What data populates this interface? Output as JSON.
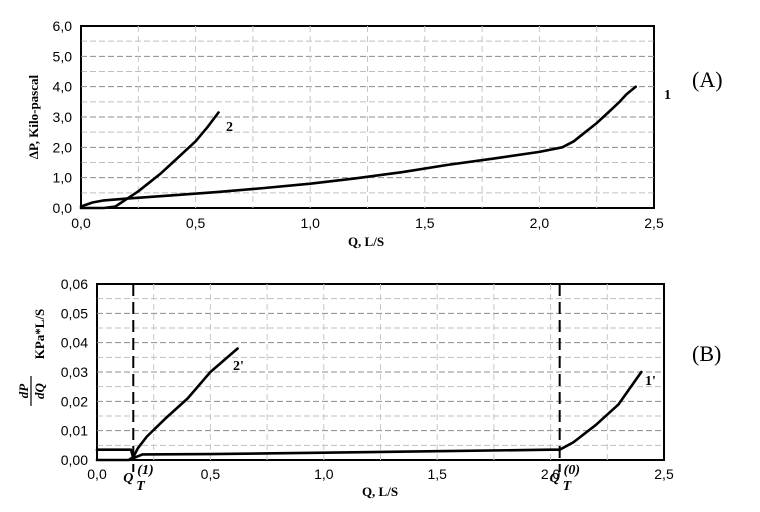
{
  "chart_data": [
    {
      "type": "line",
      "panel_label": "(A)",
      "xlabel": "Q, L/S",
      "ylabel": "ΔP, Kilo-pascal",
      "xlim": [
        0,
        2.5
      ],
      "ylim": [
        0,
        6
      ],
      "x_ticks": [
        "0,0",
        "0,5",
        "1,0",
        "1,5",
        "2,0",
        "2,5"
      ],
      "y_ticks": [
        "0,0",
        "1,0",
        "2,0",
        "3,0",
        "4,0",
        "5,0",
        "6,0"
      ],
      "grid": true,
      "series": [
        {
          "name": "1",
          "color": "#000000",
          "points": [
            [
              0,
              0.05
            ],
            [
              0.05,
              0.18
            ],
            [
              0.1,
              0.25
            ],
            [
              0.2,
              0.31
            ],
            [
              0.4,
              0.42
            ],
            [
              0.6,
              0.53
            ],
            [
              0.8,
              0.66
            ],
            [
              1.0,
              0.8
            ],
            [
              1.2,
              0.98
            ],
            [
              1.4,
              1.18
            ],
            [
              1.6,
              1.42
            ],
            [
              1.8,
              1.63
            ],
            [
              2.0,
              1.85
            ],
            [
              2.1,
              2.0
            ],
            [
              2.15,
              2.2
            ],
            [
              2.2,
              2.5
            ],
            [
              2.25,
              2.8
            ],
            [
              2.3,
              3.15
            ],
            [
              2.35,
              3.5
            ],
            [
              2.38,
              3.75
            ],
            [
              2.42,
              4.0
            ]
          ]
        },
        {
          "name": "2",
          "color": "#000000",
          "points": [
            [
              0,
              0.0
            ],
            [
              0.1,
              0.0
            ],
            [
              0.15,
              0.05
            ],
            [
              0.2,
              0.3
            ],
            [
              0.25,
              0.55
            ],
            [
              0.3,
              0.85
            ],
            [
              0.35,
              1.15
            ],
            [
              0.4,
              1.5
            ],
            [
              0.45,
              1.85
            ],
            [
              0.5,
              2.2
            ],
            [
              0.55,
              2.65
            ],
            [
              0.6,
              3.15
            ]
          ]
        }
      ]
    },
    {
      "type": "line",
      "panel_label": "(B)",
      "xlabel": "Q, L/S",
      "ylabel_fraction": {
        "numerator": "dP",
        "denominator": "dQ",
        "unit": "KPa*L/S"
      },
      "xlim": [
        0,
        2.5
      ],
      "ylim": [
        0,
        0.06
      ],
      "x_ticks": [
        "0,0",
        "0,5",
        "1,0",
        "1,5",
        "2,0",
        "2,5"
      ],
      "y_ticks": [
        "0,00",
        "0,01",
        "0,02",
        "0,03",
        "0,04",
        "0,05",
        "0,06"
      ],
      "grid": true,
      "markers": [
        {
          "x": 0.16,
          "label_main": "Q",
          "label_sub": "T",
          "label_sup": "(1)"
        },
        {
          "x": 2.04,
          "label_main": "Q",
          "label_sub": "T",
          "label_sup": "(0)"
        }
      ],
      "series": [
        {
          "name": "1'",
          "color": "#000000",
          "points": [
            [
              0,
              0.0035
            ],
            [
              0.15,
              0.0035
            ],
            [
              0.16,
              0.0006
            ],
            [
              0.2,
              0.0019
            ],
            [
              0.5,
              0.002
            ],
            [
              1.0,
              0.0025
            ],
            [
              1.5,
              0.003
            ],
            [
              2.0,
              0.0035
            ],
            [
              2.04,
              0.0035
            ],
            [
              2.1,
              0.006
            ],
            [
              2.2,
              0.012
            ],
            [
              2.3,
              0.019
            ],
            [
              2.4,
              0.03
            ]
          ]
        },
        {
          "name": "2'",
          "color": "#000000",
          "points": [
            [
              0,
              0.0
            ],
            [
              0.14,
              0.0
            ],
            [
              0.16,
              0.001
            ],
            [
              0.18,
              0.004
            ],
            [
              0.22,
              0.008
            ],
            [
              0.3,
              0.014
            ],
            [
              0.4,
              0.021
            ],
            [
              0.5,
              0.03
            ],
            [
              0.62,
              0.038
            ]
          ]
        }
      ]
    }
  ]
}
